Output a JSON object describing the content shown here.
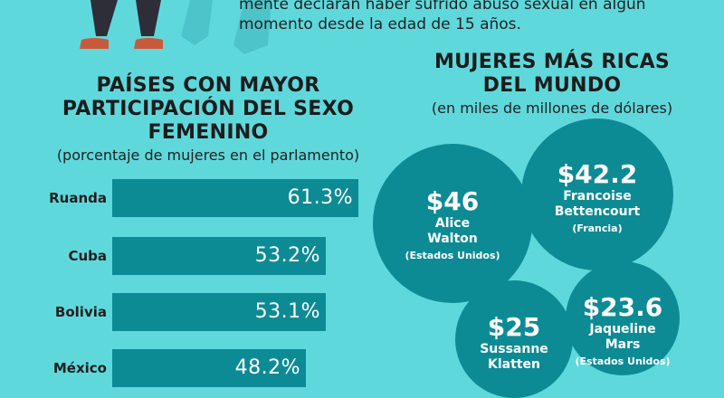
{
  "intro": {
    "line1": "mente declaran haber sufrido abuso sexual en algún",
    "line2": "momento desde la edad de 15 años."
  },
  "parliament": {
    "title_line1": "PAÍSES CON MAYOR",
    "title_line2": "PARTICIPACIÓN DEL SEXO",
    "title_line3": "FEMENINO",
    "subtitle": "(porcentaje de mujeres en el parlamento)"
  },
  "wealth": {
    "title_line1": "MUJERES MÁS RICAS",
    "title_line2": "DEL MUNDO",
    "subtitle": "(en miles de millones de dólares)"
  },
  "chart_data": [
    {
      "type": "bar",
      "orientation": "horizontal",
      "title": "PAÍSES CON MAYOR PARTICIPACIÓN DEL SEXO FEMENINO",
      "subtitle": "(porcentaje de mujeres en el parlamento)",
      "categories": [
        "Ruanda",
        "Cuba",
        "Bolivia",
        "México"
      ],
      "values": [
        61.3,
        53.2,
        53.1,
        48.2
      ],
      "value_labels": [
        "61.3%",
        "53.2%",
        "53.1%",
        "48.2%"
      ],
      "bar_color": "#0d8b95"
    },
    {
      "type": "bubble",
      "title": "MUJERES MÁS RICAS DEL MUNDO",
      "subtitle": "(en miles de millones de dólares)",
      "items": [
        {
          "amount_label": "$46",
          "value": 46,
          "name_line1": "Alice",
          "name_line2": "Walton",
          "country": "(Estados Unidos)"
        },
        {
          "amount_label": "$42.2",
          "value": 42.2,
          "name_line1": "Francoise",
          "name_line2": "Bettencourt",
          "country": "(Francia)"
        },
        {
          "amount_label": "$25",
          "value": 25,
          "name_line1": "Sussanne",
          "name_line2": "Klatten",
          "country": ""
        },
        {
          "amount_label": "$23.6",
          "value": 23.6,
          "name_line1": "Jaqueline",
          "name_line2": "Mars",
          "country": "(Estados Unidos)"
        }
      ],
      "bubble_color": "#0d8b95"
    }
  ]
}
